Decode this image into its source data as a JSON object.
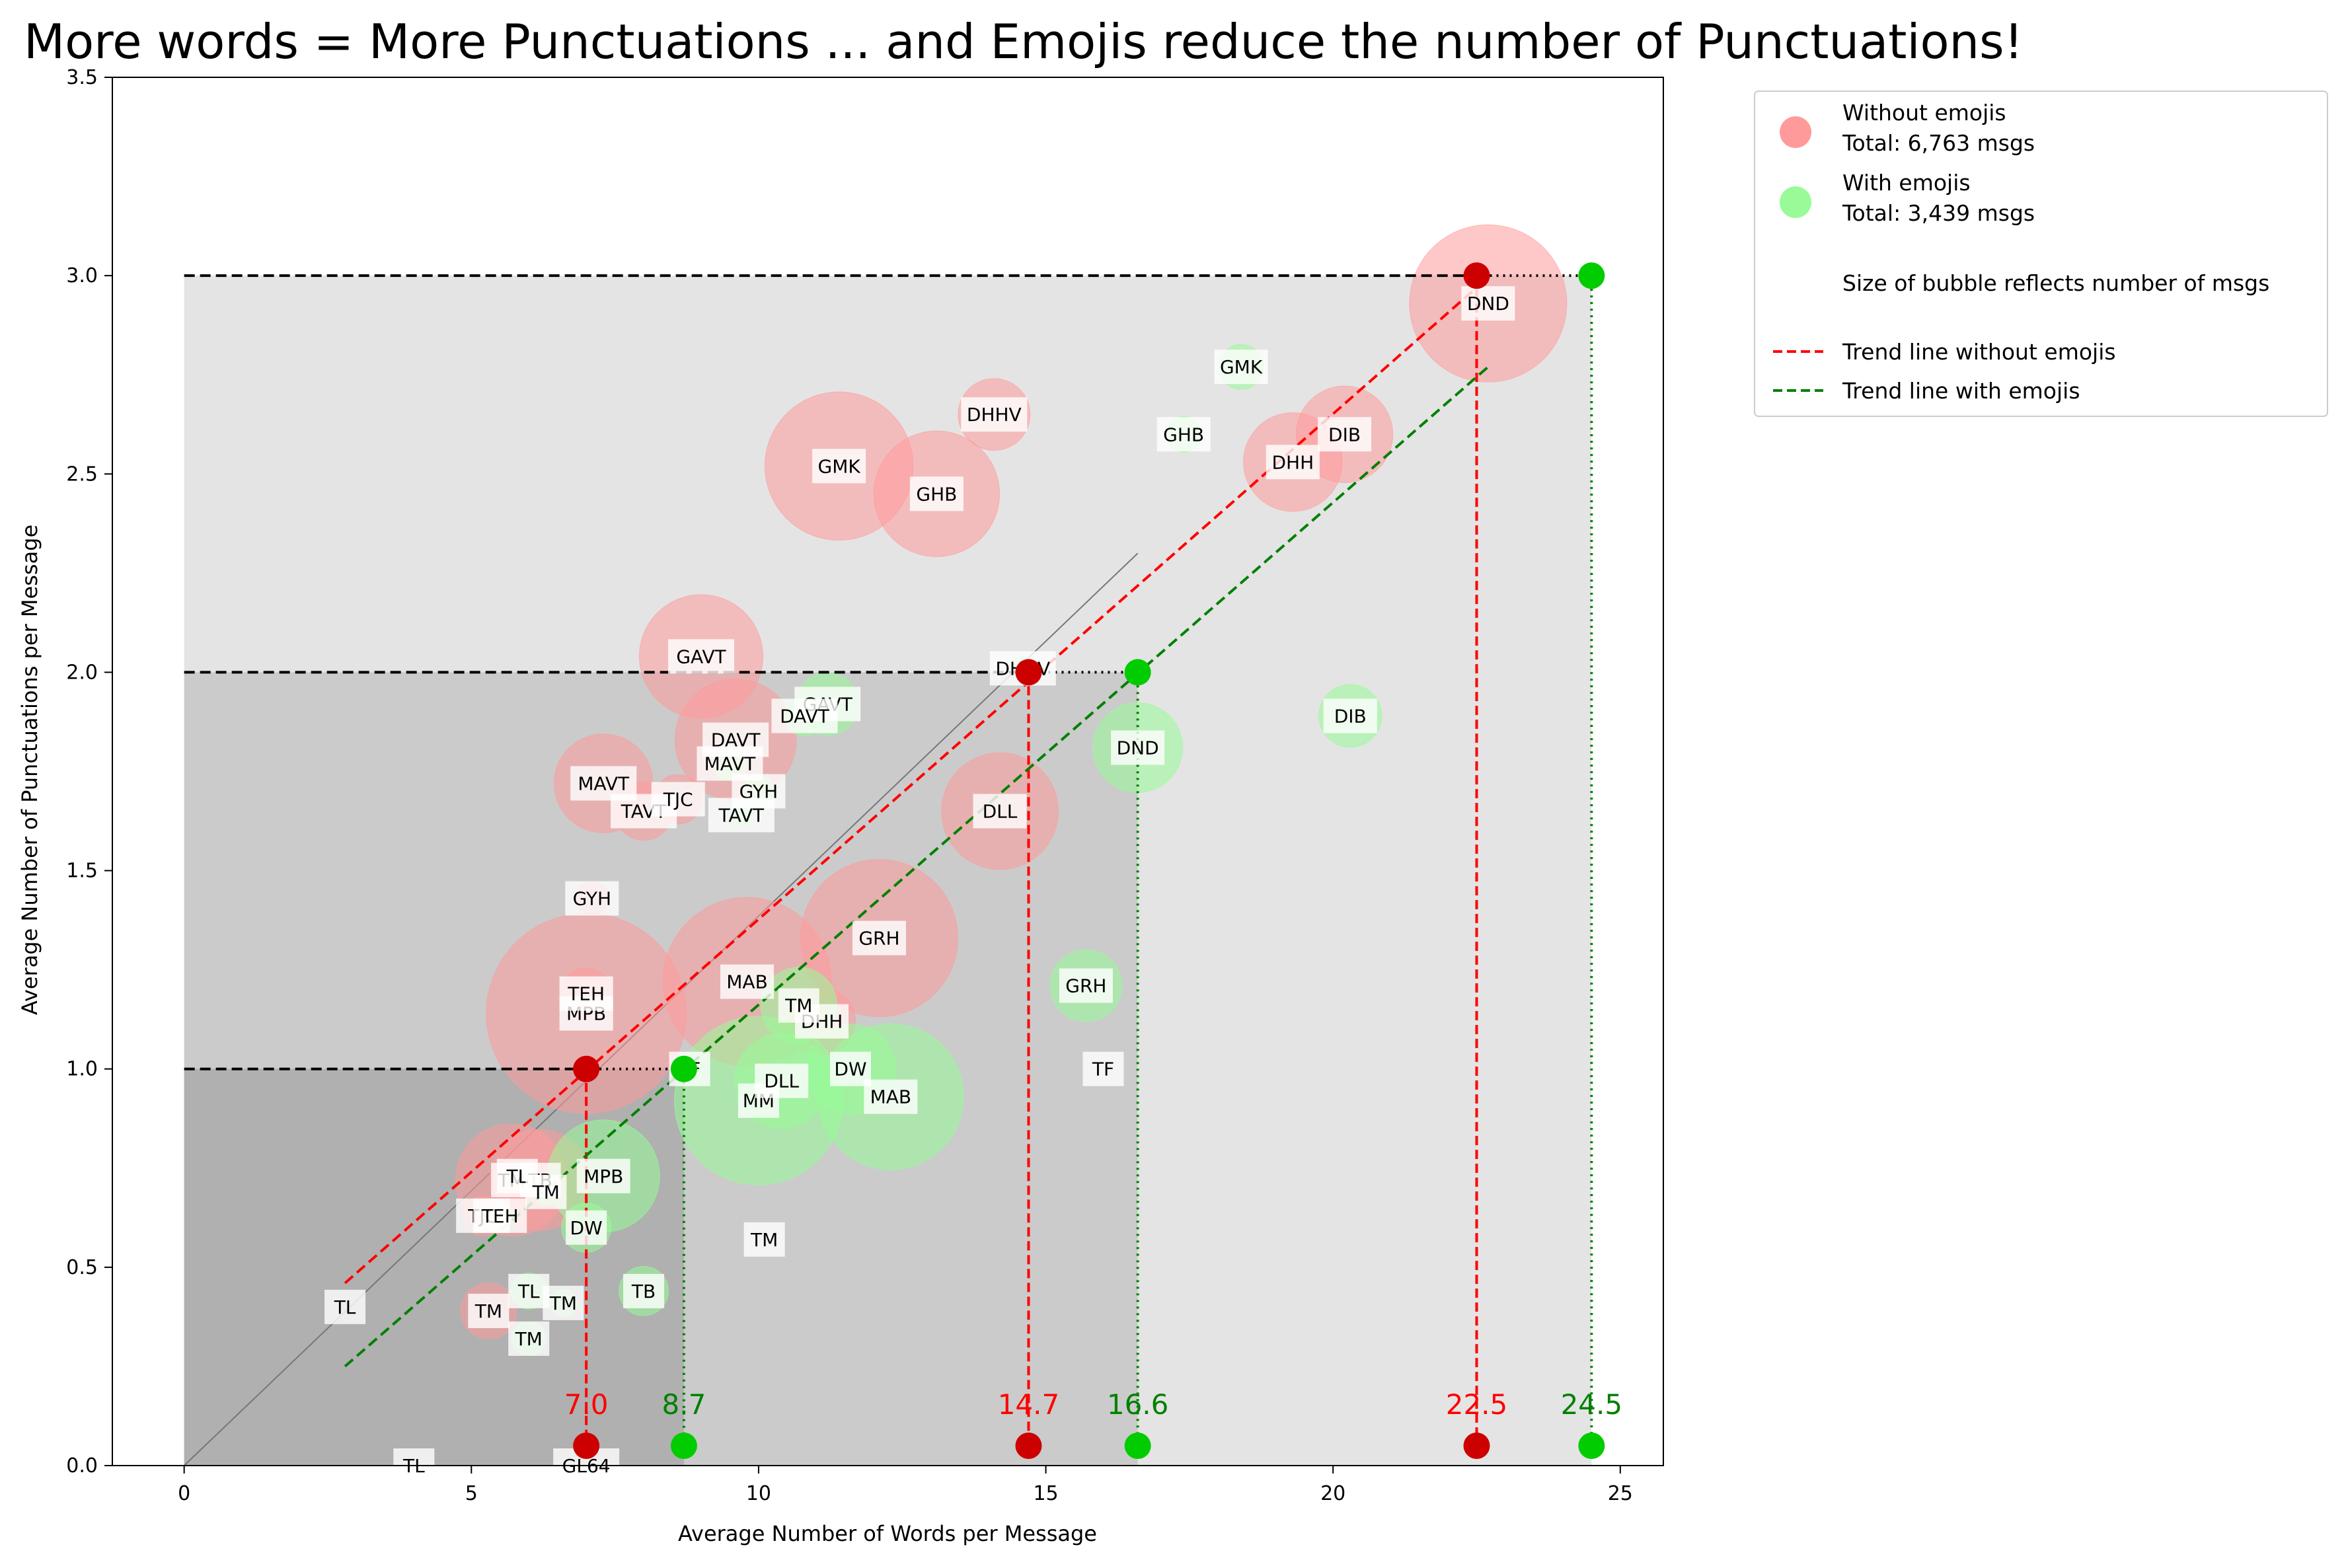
{
  "colors": {
    "without": "#ff9a9a",
    "with": "#98fb98",
    "without_marker": "#cc0000",
    "with_marker": "#00cc00",
    "trend_without": "#ff0000",
    "trend_with": "#008000",
    "band_1": "#b0b0b0",
    "band_2": "#cbcbcb",
    "band_3": "#e4e4e4"
  },
  "chart_data": {
    "type": "scatter",
    "title": "More words = More Punctuations ... and Emojis reduce the number of Punctuations!",
    "xlabel": "Average Number of Words per Message",
    "ylabel": "Average Number of Punctuations per Message",
    "xlim": [
      -1.25,
      25.75
    ],
    "ylim": [
      0,
      3.5
    ],
    "x_ticks": [
      "0",
      "5",
      "10",
      "15",
      "20",
      "25"
    ],
    "x_tick_values": [
      0,
      5,
      10,
      15,
      20,
      25
    ],
    "y_ticks": [
      "0.0",
      "0.5",
      "1.0",
      "1.5",
      "2.0",
      "2.5",
      "3.0",
      "3.5"
    ],
    "y_tick_values": [
      0,
      0.5,
      1.0,
      1.5,
      2.0,
      2.5,
      3.0,
      3.5
    ],
    "grid": false,
    "legend_position": "outside-right",
    "legend": {
      "without_label": "Without emojis",
      "without_total": "Total: 6,763 msgs",
      "with_label": "With emojis",
      "with_total": "Total: 3,439 msgs",
      "size_note": "Size of bubble reflects number of msgs",
      "trend_without": "Trend line without emojis",
      "trend_with": "Trend line with emojis"
    },
    "series": [
      {
        "name": "Without emojis",
        "points": [
          {
            "label": "DND",
            "x": 22.7,
            "y": 2.93,
            "r": 70
          },
          {
            "label": "DHHV",
            "x": 14.1,
            "y": 2.65,
            "r": 32
          },
          {
            "label": "GMK",
            "x": 11.4,
            "y": 2.52,
            "r": 66
          },
          {
            "label": "GHB",
            "x": 13.1,
            "y": 2.45,
            "r": 56
          },
          {
            "label": "DHH",
            "x": 19.3,
            "y": 2.53,
            "r": 44
          },
          {
            "label": "DIB",
            "x": 20.2,
            "y": 2.6,
            "r": 43
          },
          {
            "label": "GAVT",
            "x": 9.0,
            "y": 2.04,
            "r": 55
          },
          {
            "label": "DAVT",
            "x": 9.6,
            "y": 1.83,
            "r": 54
          },
          {
            "label": "MAVT",
            "x": 7.3,
            "y": 1.72,
            "r": 44
          },
          {
            "label": "TAVT",
            "x": 8.0,
            "y": 1.65,
            "r": 26
          },
          {
            "label": "TJC",
            "x": 8.6,
            "y": 1.68,
            "r": 22
          },
          {
            "label": "GYH",
            "x": 7.1,
            "y": 1.43,
            "r": 15
          },
          {
            "label": "DLL",
            "x": 14.2,
            "y": 1.65,
            "r": 52
          },
          {
            "label": "GRH",
            "x": 12.1,
            "y": 1.33,
            "r": 70
          },
          {
            "label": "MAB",
            "x": 9.8,
            "y": 1.22,
            "r": 75
          },
          {
            "label": "MPB",
            "x": 7.0,
            "y": 1.14,
            "r": 89
          },
          {
            "label": "TEH",
            "x": 7.0,
            "y": 1.19,
            "r": 23
          },
          {
            "label": "DHH",
            "x": 11.1,
            "y": 1.12,
            "r": 30
          },
          {
            "label": "TM",
            "x": 5.7,
            "y": 0.72,
            "r": 50
          },
          {
            "label": "TB",
            "x": 6.2,
            "y": 0.72,
            "r": 45
          },
          {
            "label": "TJC",
            "x": 5.2,
            "y": 0.63,
            "r": 18
          },
          {
            "label": "TM",
            "x": 5.3,
            "y": 0.39,
            "r": 25
          },
          {
            "label": "TL",
            "x": 5.8,
            "y": 0.73,
            "r": 12
          }
        ]
      },
      {
        "name": "With emojis",
        "points": [
          {
            "label": "GMK",
            "x": 18.4,
            "y": 2.77,
            "r": 20
          },
          {
            "label": "GHB",
            "x": 17.4,
            "y": 2.6,
            "r": 16
          },
          {
            "label": "GAVT",
            "x": 11.2,
            "y": 1.92,
            "r": 28
          },
          {
            "label": "DAVT",
            "x": 10.8,
            "y": 1.89,
            "r": 18
          },
          {
            "label": "MAVT",
            "x": 9.5,
            "y": 1.77,
            "r": 15
          },
          {
            "label": "GYH",
            "x": 10.0,
            "y": 1.7,
            "r": 14
          },
          {
            "label": "TAVT",
            "x": 9.7,
            "y": 1.64,
            "r": 11
          },
          {
            "label": "DND",
            "x": 16.6,
            "y": 1.81,
            "r": 40
          },
          {
            "label": "DIB",
            "x": 20.3,
            "y": 1.89,
            "r": 28
          },
          {
            "label": "DHHV",
            "x": 14.6,
            "y": 2.01,
            "r": 11
          },
          {
            "label": "GRH",
            "x": 15.7,
            "y": 1.21,
            "r": 32
          },
          {
            "label": "TM",
            "x": 10.7,
            "y": 1.16,
            "r": 34
          },
          {
            "label": "DW",
            "x": 11.6,
            "y": 1.0,
            "r": 40
          },
          {
            "label": "MAB",
            "x": 12.3,
            "y": 0.93,
            "r": 65
          },
          {
            "label": "MM",
            "x": 10.0,
            "y": 0.92,
            "r": 75
          },
          {
            "label": "DLL",
            "x": 10.4,
            "y": 0.97,
            "r": 42
          },
          {
            "label": "TF",
            "x": 8.8,
            "y": 1.0,
            "r": 12
          },
          {
            "label": "MPB",
            "x": 7.3,
            "y": 0.73,
            "r": 50
          },
          {
            "label": "DW",
            "x": 7.0,
            "y": 0.6,
            "r": 22
          },
          {
            "label": "TB",
            "x": 8.0,
            "y": 0.44,
            "r": 22
          },
          {
            "label": "TL",
            "x": 6.0,
            "y": 0.44,
            "r": 16
          },
          {
            "label": "TM",
            "x": 6.0,
            "y": 0.32,
            "r": 15
          },
          {
            "label": "TM",
            "x": 6.6,
            "y": 0.41,
            "r": 12
          },
          {
            "label": "TEH",
            "x": 5.5,
            "y": 0.63,
            "r": 12
          },
          {
            "label": "TM",
            "x": 6.3,
            "y": 0.69,
            "r": 12
          }
        ]
      }
    ],
    "plain_labels": [
      {
        "label": "TL",
        "x": 2.8,
        "y": 0.4
      },
      {
        "label": "TL",
        "x": 4.0,
        "y": 0.0
      },
      {
        "label": "GL64",
        "x": 7.0,
        "y": 0.0
      },
      {
        "label": "TM",
        "x": 10.1,
        "y": 0.57
      },
      {
        "label": "TF",
        "x": 16.0,
        "y": 1.0
      }
    ],
    "marker_points": [
      {
        "name": "Without emojis",
        "x": 7.0,
        "y": 1.0,
        "label": "7.0"
      },
      {
        "name": "Without emojis",
        "x": 14.7,
        "y": 2.0,
        "label": "14.7"
      },
      {
        "name": "Without emojis",
        "x": 22.5,
        "y": 3.0,
        "label": "22.5"
      },
      {
        "name": "With emojis",
        "x": 8.7,
        "y": 1.0,
        "label": "8.7"
      },
      {
        "name": "With emojis",
        "x": 16.6,
        "y": 2.0,
        "label": "16.6"
      },
      {
        "name": "With emojis",
        "x": 24.5,
        "y": 3.0,
        "label": "24.5"
      }
    ],
    "trend_lines": [
      {
        "name": "Trend line without emojis",
        "x": [
          2.8,
          22.5
        ],
        "y": [
          0.46,
          2.97
        ]
      },
      {
        "name": "Trend line with emojis",
        "x": [
          2.8,
          22.7
        ],
        "y": [
          0.25,
          2.77
        ]
      }
    ],
    "reference_levels": [
      1.0,
      2.0,
      3.0
    ]
  }
}
